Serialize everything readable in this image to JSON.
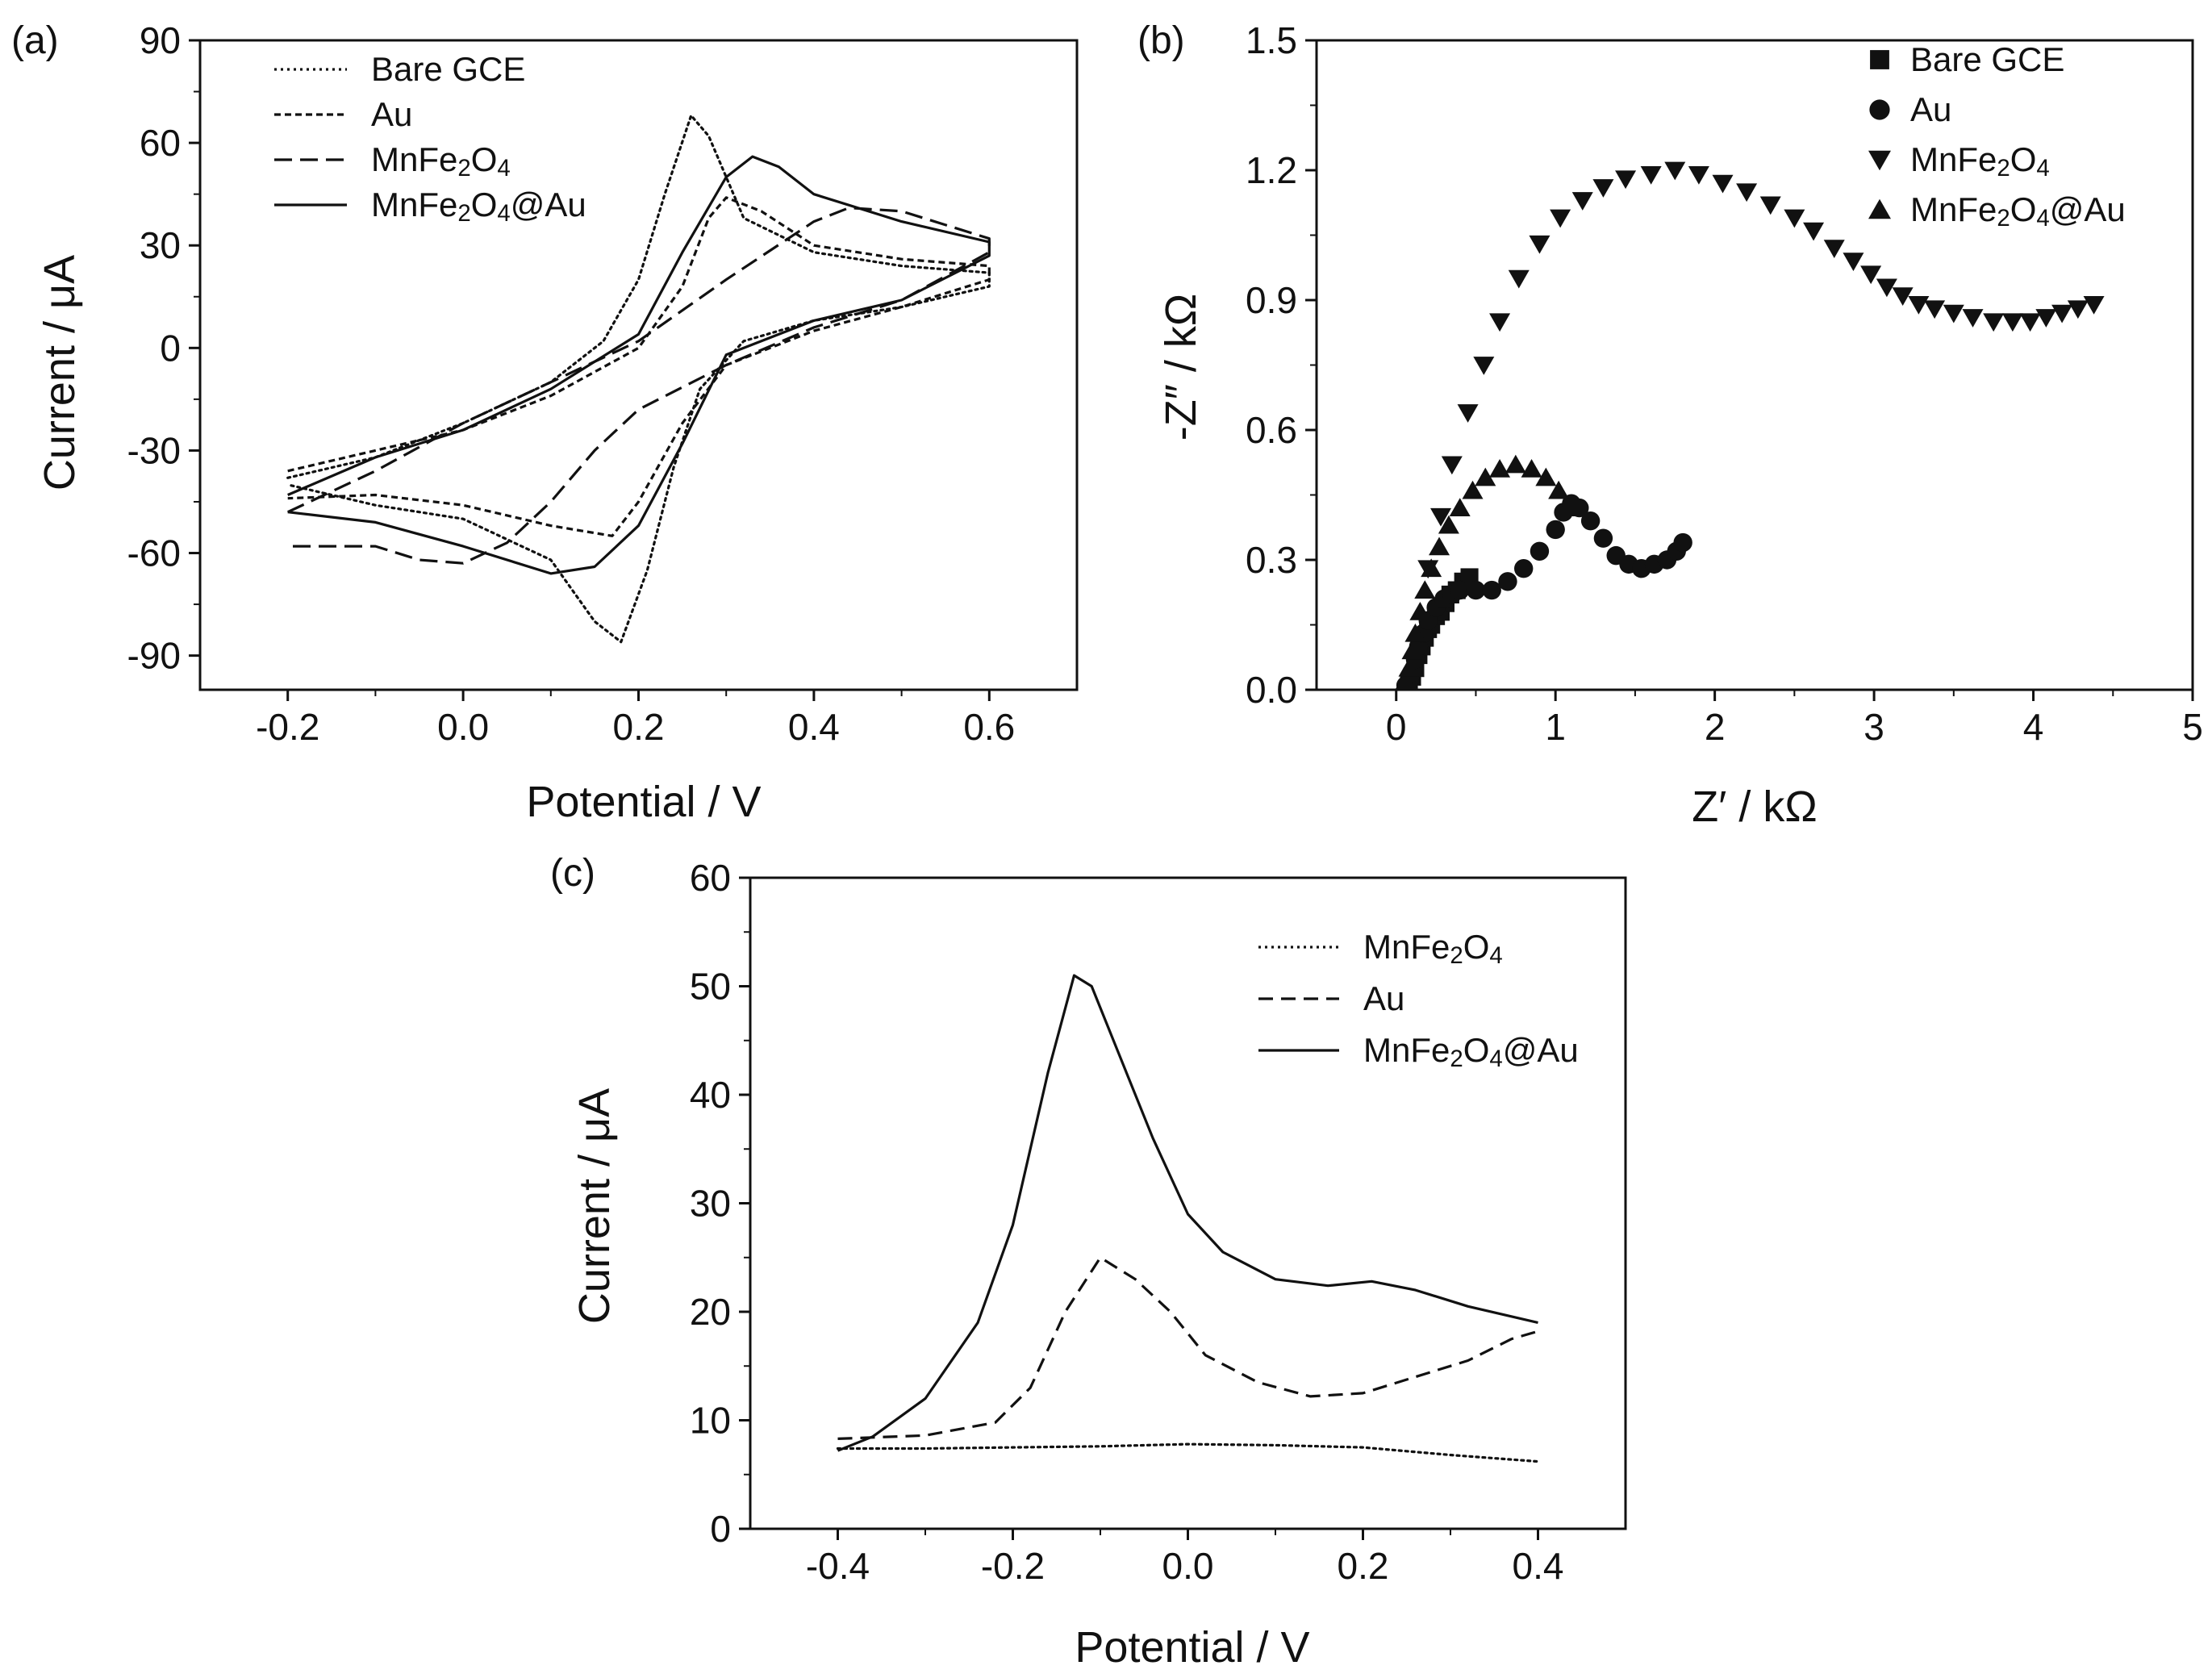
{
  "chart_data": [
    {
      "id": "a",
      "panel_label": "(a)",
      "type": "line",
      "xlabel": "Potential / V",
      "ylabel": "Current / μA",
      "xlim": [
        -0.3,
        0.7
      ],
      "ylim": [
        -100,
        90
      ],
      "xticks": [
        -0.2,
        0.0,
        0.2,
        0.4,
        0.6
      ],
      "xtick_labels": [
        "-0.2",
        "0.0",
        "0.2",
        "0.4",
        "0.6"
      ],
      "yticks": [
        -90,
        -60,
        -30,
        0,
        30,
        60,
        90
      ],
      "ytick_labels": [
        "-90",
        "-60",
        "-30",
        "0",
        "30",
        "60",
        "90"
      ],
      "legend_position": "top-left",
      "series": [
        {
          "name": "Bare GCE",
          "style": "dotted",
          "points": [
            [
              -0.2,
              -38
            ],
            [
              -0.1,
              -32
            ],
            [
              0.0,
              -22
            ],
            [
              0.1,
              -10
            ],
            [
              0.16,
              2
            ],
            [
              0.2,
              20
            ],
            [
              0.23,
              45
            ],
            [
              0.26,
              68
            ],
            [
              0.28,
              62
            ],
            [
              0.32,
              38
            ],
            [
              0.4,
              28
            ],
            [
              0.5,
              24
            ],
            [
              0.6,
              22
            ],
            [
              0.6,
              18
            ],
            [
              0.5,
              12
            ],
            [
              0.4,
              8
            ],
            [
              0.32,
              2
            ],
            [
              0.27,
              -12
            ],
            [
              0.24,
              -35
            ],
            [
              0.21,
              -65
            ],
            [
              0.18,
              -86
            ],
            [
              0.15,
              -80
            ],
            [
              0.1,
              -62
            ],
            [
              0.0,
              -50
            ],
            [
              -0.1,
              -46
            ],
            [
              -0.2,
              -40
            ]
          ]
        },
        {
          "name": "Au",
          "style": "short-dash",
          "points": [
            [
              -0.2,
              -36
            ],
            [
              -0.1,
              -30
            ],
            [
              0.0,
              -24
            ],
            [
              0.1,
              -14
            ],
            [
              0.2,
              0
            ],
            [
              0.25,
              18
            ],
            [
              0.28,
              38
            ],
            [
              0.3,
              44
            ],
            [
              0.34,
              40
            ],
            [
              0.4,
              30
            ],
            [
              0.5,
              26
            ],
            [
              0.6,
              24
            ],
            [
              0.6,
              20
            ],
            [
              0.5,
              12
            ],
            [
              0.4,
              5
            ],
            [
              0.3,
              -5
            ],
            [
              0.25,
              -22
            ],
            [
              0.2,
              -45
            ],
            [
              0.17,
              -55
            ],
            [
              0.1,
              -52
            ],
            [
              0.0,
              -46
            ],
            [
              -0.1,
              -43
            ],
            [
              -0.2,
              -44
            ]
          ]
        },
        {
          "name": "MnFe₂O₄",
          "style": "long-dash",
          "points": [
            [
              -0.2,
              -48
            ],
            [
              -0.1,
              -36
            ],
            [
              0.0,
              -22
            ],
            [
              0.1,
              -10
            ],
            [
              0.2,
              2
            ],
            [
              0.3,
              20
            ],
            [
              0.4,
              37
            ],
            [
              0.44,
              41
            ],
            [
              0.5,
              40
            ],
            [
              0.6,
              32
            ],
            [
              0.6,
              28
            ],
            [
              0.5,
              14
            ],
            [
              0.4,
              6
            ],
            [
              0.3,
              -5
            ],
            [
              0.2,
              -18
            ],
            [
              0.15,
              -30
            ],
            [
              0.1,
              -45
            ],
            [
              0.05,
              -57
            ],
            [
              0.0,
              -63
            ],
            [
              -0.05,
              -62
            ],
            [
              -0.1,
              -58
            ],
            [
              -0.2,
              -58
            ]
          ]
        },
        {
          "name": "MnFe₂O₄@Au",
          "style": "solid",
          "points": [
            [
              -0.2,
              -43
            ],
            [
              -0.1,
              -32
            ],
            [
              0.0,
              -24
            ],
            [
              0.1,
              -12
            ],
            [
              0.2,
              4
            ],
            [
              0.25,
              28
            ],
            [
              0.3,
              50
            ],
            [
              0.33,
              56
            ],
            [
              0.36,
              53
            ],
            [
              0.4,
              45
            ],
            [
              0.5,
              37
            ],
            [
              0.6,
              31
            ],
            [
              0.6,
              27
            ],
            [
              0.5,
              14
            ],
            [
              0.4,
              8
            ],
            [
              0.3,
              -2
            ],
            [
              0.25,
              -28
            ],
            [
              0.2,
              -52
            ],
            [
              0.15,
              -64
            ],
            [
              0.1,
              -66
            ],
            [
              0.0,
              -58
            ],
            [
              -0.1,
              -51
            ],
            [
              -0.2,
              -48
            ]
          ]
        }
      ]
    },
    {
      "id": "b",
      "panel_label": "(b)",
      "type": "scatter",
      "xlabel": "Z′ / kΩ",
      "ylabel": "-Z″ / kΩ",
      "xlim": [
        -0.5,
        5
      ],
      "ylim": [
        0,
        1.5
      ],
      "xticks": [
        0,
        1,
        2,
        3,
        4,
        5
      ],
      "xtick_labels": [
        "0",
        "1",
        "2",
        "3",
        "4",
        "5"
      ],
      "yticks": [
        0.0,
        0.3,
        0.6,
        0.9,
        1.2,
        1.5
      ],
      "ytick_labels": [
        "0.0",
        "0.3",
        "0.6",
        "0.9",
        "1.2",
        "1.5"
      ],
      "legend_position": "top-right",
      "series": [
        {
          "name": "Bare GCE",
          "marker": "square",
          "points": [
            [
              0.08,
              0.01
            ],
            [
              0.1,
              0.03
            ],
            [
              0.12,
              0.05
            ],
            [
              0.14,
              0.08
            ],
            [
              0.16,
              0.1
            ],
            [
              0.18,
              0.12
            ],
            [
              0.2,
              0.14
            ],
            [
              0.22,
              0.15
            ],
            [
              0.25,
              0.17
            ],
            [
              0.28,
              0.18
            ],
            [
              0.31,
              0.2
            ],
            [
              0.34,
              0.22
            ],
            [
              0.38,
              0.23
            ],
            [
              0.42,
              0.25
            ],
            [
              0.46,
              0.26
            ]
          ]
        },
        {
          "name": "Au",
          "marker": "circle",
          "points": [
            [
              0.06,
              0.01
            ],
            [
              0.08,
              0.02
            ],
            [
              0.1,
              0.04
            ],
            [
              0.12,
              0.07
            ],
            [
              0.14,
              0.1
            ],
            [
              0.17,
              0.13
            ],
            [
              0.2,
              0.16
            ],
            [
              0.25,
              0.19
            ],
            [
              0.3,
              0.21
            ],
            [
              0.35,
              0.22
            ],
            [
              0.4,
              0.23
            ],
            [
              0.5,
              0.23
            ],
            [
              0.6,
              0.23
            ],
            [
              0.7,
              0.25
            ],
            [
              0.8,
              0.28
            ],
            [
              0.9,
              0.32
            ],
            [
              1.0,
              0.37
            ],
            [
              1.05,
              0.41
            ],
            [
              1.1,
              0.43
            ],
            [
              1.15,
              0.42
            ],
            [
              1.22,
              0.39
            ],
            [
              1.3,
              0.35
            ],
            [
              1.38,
              0.31
            ],
            [
              1.46,
              0.29
            ],
            [
              1.54,
              0.28
            ],
            [
              1.62,
              0.29
            ],
            [
              1.7,
              0.3
            ],
            [
              1.76,
              0.32
            ],
            [
              1.8,
              0.34
            ]
          ]
        },
        {
          "name": "MnFe₂O₄",
          "marker": "triangle-down",
          "points": [
            [
              0.2,
              0.28
            ],
            [
              0.28,
              0.4
            ],
            [
              0.35,
              0.52
            ],
            [
              0.45,
              0.64
            ],
            [
              0.55,
              0.75
            ],
            [
              0.65,
              0.85
            ],
            [
              0.77,
              0.95
            ],
            [
              0.9,
              1.03
            ],
            [
              1.03,
              1.09
            ],
            [
              1.17,
              1.13
            ],
            [
              1.3,
              1.16
            ],
            [
              1.44,
              1.18
            ],
            [
              1.6,
              1.19
            ],
            [
              1.75,
              1.2
            ],
            [
              1.9,
              1.19
            ],
            [
              2.05,
              1.17
            ],
            [
              2.2,
              1.15
            ],
            [
              2.35,
              1.12
            ],
            [
              2.5,
              1.09
            ],
            [
              2.62,
              1.06
            ],
            [
              2.75,
              1.02
            ],
            [
              2.87,
              0.99
            ],
            [
              2.98,
              0.96
            ],
            [
              3.08,
              0.93
            ],
            [
              3.18,
              0.91
            ],
            [
              3.28,
              0.89
            ],
            [
              3.38,
              0.88
            ],
            [
              3.5,
              0.87
            ],
            [
              3.62,
              0.86
            ],
            [
              3.75,
              0.85
            ],
            [
              3.87,
              0.85
            ],
            [
              3.98,
              0.85
            ],
            [
              4.08,
              0.86
            ],
            [
              4.18,
              0.87
            ],
            [
              4.28,
              0.88
            ],
            [
              4.38,
              0.89
            ]
          ]
        },
        {
          "name": "MnFe₂O₄@Au",
          "marker": "triangle-up",
          "points": [
            [
              0.06,
              0.02
            ],
            [
              0.08,
              0.05
            ],
            [
              0.1,
              0.09
            ],
            [
              0.12,
              0.13
            ],
            [
              0.15,
              0.18
            ],
            [
              0.18,
              0.23
            ],
            [
              0.22,
              0.28
            ],
            [
              0.27,
              0.33
            ],
            [
              0.33,
              0.38
            ],
            [
              0.4,
              0.42
            ],
            [
              0.48,
              0.46
            ],
            [
              0.56,
              0.49
            ],
            [
              0.65,
              0.51
            ],
            [
              0.75,
              0.52
            ],
            [
              0.85,
              0.51
            ],
            [
              0.94,
              0.49
            ],
            [
              1.02,
              0.46
            ],
            [
              1.08,
              0.42
            ]
          ]
        }
      ]
    },
    {
      "id": "c",
      "panel_label": "(c)",
      "type": "line",
      "xlabel": "Potential / V",
      "ylabel": "Current / μA",
      "xlim": [
        -0.5,
        0.5
      ],
      "ylim": [
        0,
        60
      ],
      "xticks": [
        -0.4,
        -0.2,
        0.0,
        0.2,
        0.4
      ],
      "xtick_labels": [
        "-0.4",
        "-0.2",
        "0.0",
        "0.2",
        "0.4"
      ],
      "yticks": [
        0,
        10,
        20,
        30,
        40,
        50,
        60
      ],
      "ytick_labels": [
        "0",
        "10",
        "20",
        "30",
        "40",
        "50",
        "60"
      ],
      "legend_position": "top-right",
      "series": [
        {
          "name": "MnFe₂O₄",
          "style": "dotted",
          "points": [
            [
              -0.4,
              7.4
            ],
            [
              -0.3,
              7.4
            ],
            [
              -0.2,
              7.5
            ],
            [
              -0.1,
              7.6
            ],
            [
              0.0,
              7.8
            ],
            [
              0.1,
              7.7
            ],
            [
              0.2,
              7.5
            ],
            [
              0.3,
              6.8
            ],
            [
              0.4,
              6.2
            ]
          ]
        },
        {
          "name": "Au",
          "style": "dashed",
          "points": [
            [
              -0.4,
              8.3
            ],
            [
              -0.3,
              8.6
            ],
            [
              -0.22,
              9.8
            ],
            [
              -0.18,
              13
            ],
            [
              -0.14,
              20
            ],
            [
              -0.1,
              25
            ],
            [
              -0.06,
              23
            ],
            [
              -0.02,
              20
            ],
            [
              0.02,
              16
            ],
            [
              0.08,
              13.5
            ],
            [
              0.14,
              12.2
            ],
            [
              0.2,
              12.5
            ],
            [
              0.26,
              14
            ],
            [
              0.32,
              15.5
            ],
            [
              0.37,
              17.5
            ],
            [
              0.4,
              18.2
            ]
          ]
        },
        {
          "name": "MnFe₂O₄@Au",
          "style": "solid",
          "points": [
            [
              -0.4,
              7.2
            ],
            [
              -0.36,
              8.5
            ],
            [
              -0.3,
              12
            ],
            [
              -0.24,
              19
            ],
            [
              -0.2,
              28
            ],
            [
              -0.16,
              42
            ],
            [
              -0.13,
              51
            ],
            [
              -0.11,
              50
            ],
            [
              -0.08,
              44
            ],
            [
              -0.04,
              36
            ],
            [
              0.0,
              29
            ],
            [
              0.04,
              25.5
            ],
            [
              0.1,
              23
            ],
            [
              0.16,
              22.4
            ],
            [
              0.21,
              22.8
            ],
            [
              0.26,
              22
            ],
            [
              0.32,
              20.5
            ],
            [
              0.4,
              19
            ]
          ]
        }
      ]
    }
  ]
}
